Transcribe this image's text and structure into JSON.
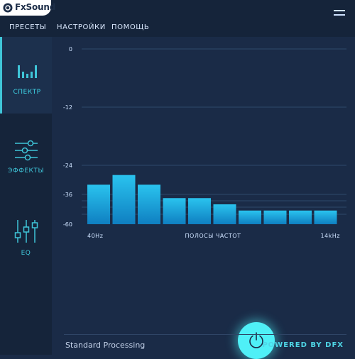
{
  "app": {
    "logo_text": "FxSound"
  },
  "menu": [
    "ПРЕСЕТЫ",
    "НАСТРОЙКИ",
    "ПОМОЩЬ"
  ],
  "sidebar": {
    "items": [
      {
        "label": "СПЕКТР",
        "icon": "spectrum-bars-icon",
        "active": true
      },
      {
        "label": "ЭФФЕКТЫ",
        "icon": "effects-sliders-icon",
        "active": false
      },
      {
        "label": "EQ",
        "icon": "eq-sliders-icon",
        "active": false
      }
    ]
  },
  "chart_data": {
    "type": "bar",
    "y_ticks": [
      "0",
      "-12",
      "-24",
      "-36",
      "-60"
    ],
    "ylim": [
      -60,
      0
    ],
    "categories_label": "ПОЛОСЫ ЧАСТОТ",
    "x_start_label": "40Hz",
    "x_end_label": "14kHz",
    "values": [
      -32,
      -28,
      -32,
      -39,
      -39,
      -44,
      -49,
      -49,
      -49,
      -49
    ],
    "colors": {
      "bar_top": "#2ac3ee",
      "bar_bottom": "#0f7fc1",
      "grid": "#2d4a6b"
    }
  },
  "footer": {
    "status": "Standard Processing",
    "powered": "POWERED BY DFX"
  },
  "colors": {
    "accent": "#4ff0f7",
    "background": "#1a2b47",
    "sidebar": "#15243a"
  }
}
